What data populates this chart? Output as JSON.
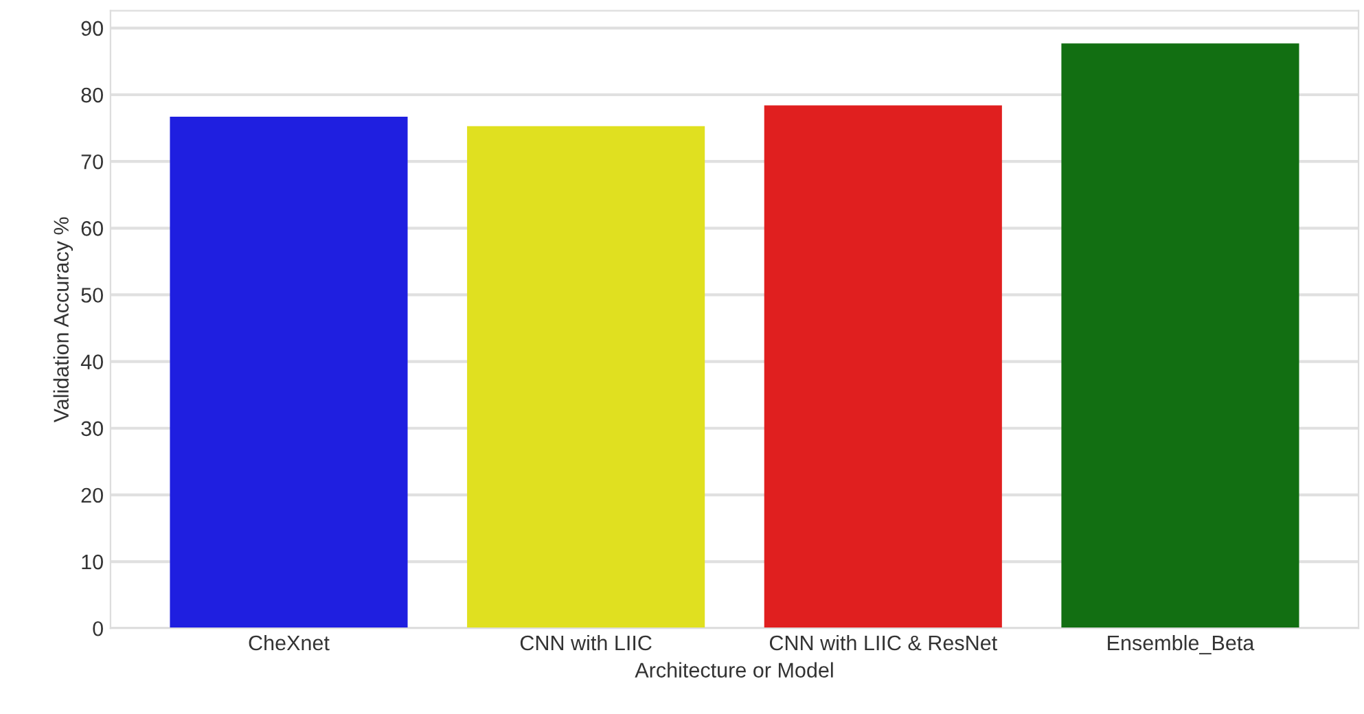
{
  "chart_data": {
    "type": "bar",
    "xlabel": "Architecture or Model",
    "ylabel": "Validation Accuracy %",
    "categories": [
      "CheXnet",
      "CNN with LIIC",
      "CNN with LIIC & ResNet",
      "Ensemble_Beta"
    ],
    "values": [
      76.7,
      75.3,
      78.4,
      87.7
    ],
    "colors": [
      "#1f1fe0",
      "#e0e020",
      "#e01f1f",
      "#126f12"
    ],
    "ylim": [
      0,
      92.6
    ],
    "yticks": [
      0,
      10,
      20,
      30,
      40,
      50,
      60,
      70,
      80,
      90
    ],
    "grid": "y"
  }
}
